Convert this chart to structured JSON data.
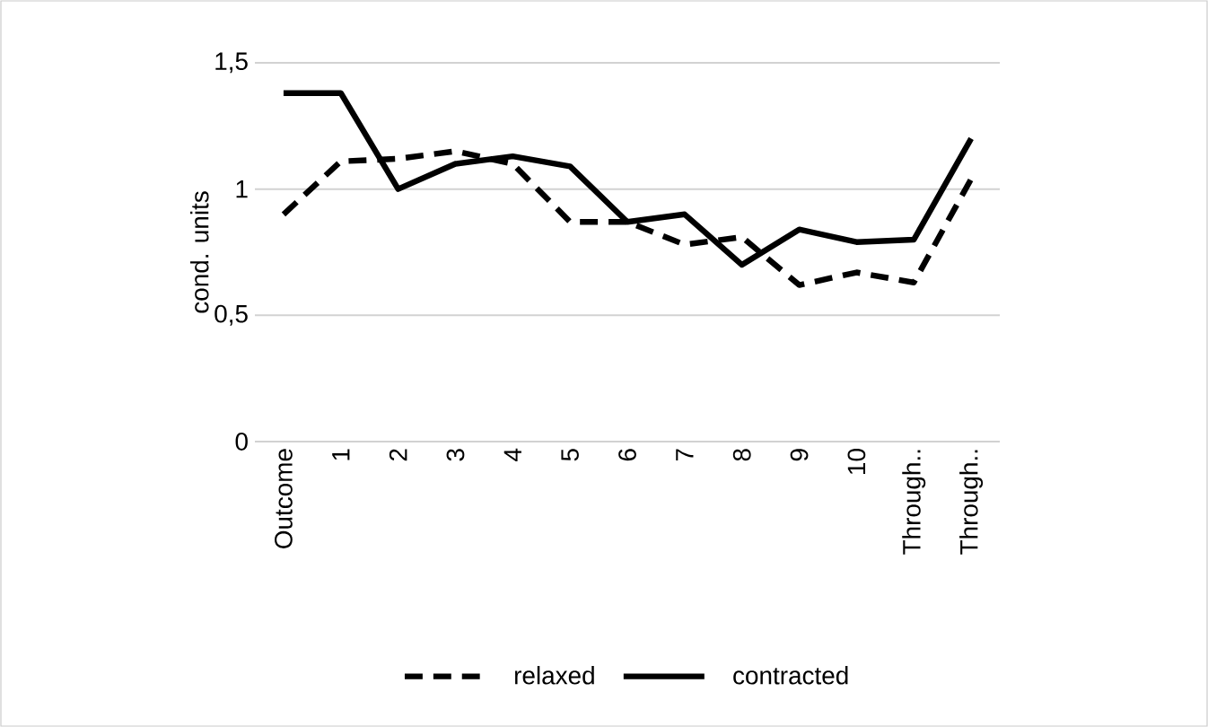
{
  "chart_data": {
    "type": "line",
    "ylabel": "cond. units",
    "categories": [
      "Outcome",
      "1",
      "2",
      "3",
      "4",
      "5",
      "6",
      "7",
      "8",
      "9",
      "10",
      "Through..",
      "Through.."
    ],
    "series": [
      {
        "name": "relaxed",
        "color": "#000000",
        "line_style": "dashed",
        "values": [
          0.9,
          1.11,
          1.12,
          1.15,
          1.1,
          0.87,
          0.87,
          0.78,
          0.81,
          0.62,
          0.67,
          0.63,
          1.04
        ]
      },
      {
        "name": "contracted",
        "color": "#000000",
        "line_style": "solid",
        "values": [
          1.38,
          1.38,
          1.0,
          1.1,
          1.13,
          1.09,
          0.87,
          0.9,
          0.7,
          0.84,
          0.79,
          0.8,
          1.2
        ]
      }
    ],
    "ylim": [
      0,
      1.5
    ],
    "yticks": [
      0,
      {
        "value": 0.5,
        "label": "0,5"
      },
      1,
      {
        "value": 1.5,
        "label": "1,5"
      }
    ],
    "grid": "y",
    "legend": "bottom",
    "marker": "none"
  }
}
